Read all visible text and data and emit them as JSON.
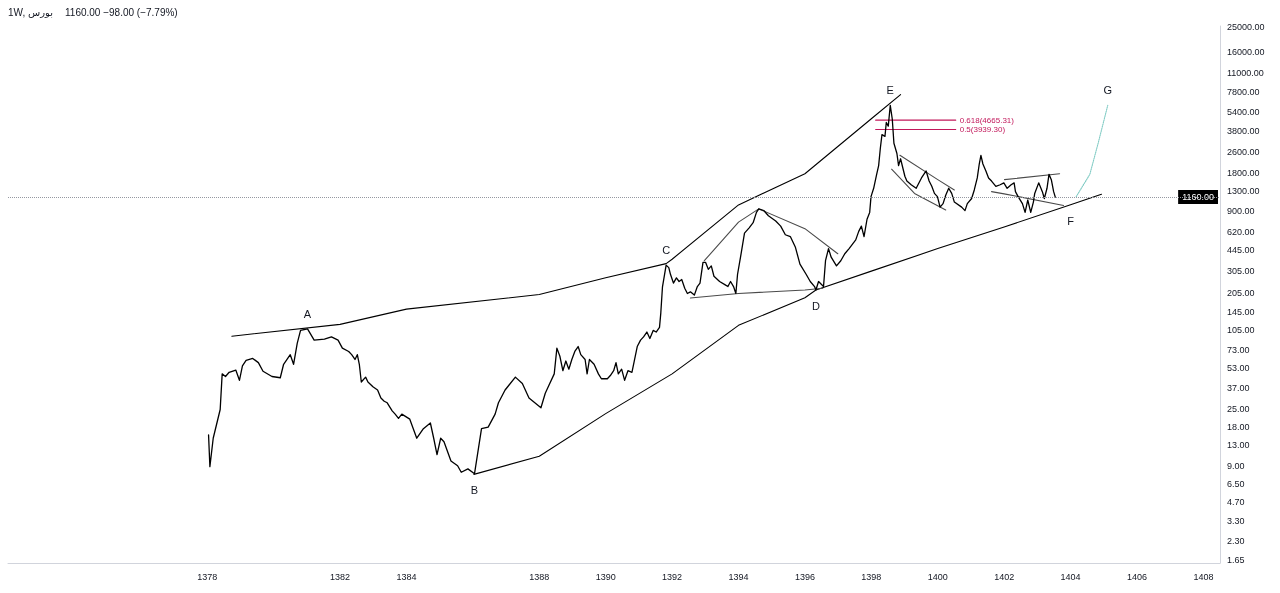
{
  "chart_data": {
    "type": "line",
    "title": "1W, بورس",
    "subtitle": "1160.00  −98.00 (−7.79%)",
    "log": "y",
    "marker": "none",
    "xlim": [
      1372,
      1408.5
    ],
    "xticks": [
      1378,
      1382,
      1384,
      1388,
      1390,
      1392,
      1394,
      1396,
      1398,
      1400,
      1402,
      1404,
      1406,
      1408
    ],
    "ylim": [
      1.55,
      25600
    ],
    "yticks": [
      1.65,
      {
        "value": 2.3,
        "label": "2.30"
      },
      {
        "value": 3.3,
        "label": "3.30"
      },
      {
        "value": 4.7,
        "label": "4.70"
      },
      {
        "value": 6.5,
        "label": "6.50"
      },
      {
        "value": 9,
        "label": "9.00"
      },
      {
        "value": 13,
        "label": "13.00"
      },
      {
        "value": 18,
        "label": "18.00"
      },
      {
        "value": 25,
        "label": "25.00"
      },
      {
        "value": 37,
        "label": "37.00"
      },
      {
        "value": 53,
        "label": "53.00"
      },
      {
        "value": 73,
        "label": "73.00"
      },
      {
        "value": 105,
        "label": "105.00"
      },
      {
        "value": 145,
        "label": "145.00"
      },
      {
        "value": 205,
        "label": "205.00"
      },
      {
        "value": 305,
        "label": "305.00"
      },
      {
        "value": 445,
        "label": "445.00"
      },
      {
        "value": 620,
        "label": "620.00"
      },
      {
        "value": 900,
        "label": "900.00"
      },
      {
        "value": 1300,
        "label": "1300.00"
      },
      {
        "value": 1800,
        "label": "1800.00"
      },
      {
        "value": 2600,
        "label": "2600.00"
      },
      {
        "value": 3800,
        "label": "3800.00"
      },
      {
        "value": 5400,
        "label": "5400.00"
      },
      {
        "value": 7800,
        "label": "7800.00"
      },
      {
        "value": 11000,
        "label": "11000.00"
      },
      {
        "value": 16000,
        "label": "16000.00"
      },
      {
        "value": 25000,
        "label": "25000.00"
      }
    ],
    "series": [
      {
        "color": "#000000",
        "x": [
          1378.04,
          1378.08,
          1378.18,
          1378.39,
          1378.45,
          1378.55,
          1378.66,
          1378.86,
          1378.97,
          1379.06,
          1379.17,
          1379.37,
          1379.54,
          1379.68,
          1379.95,
          1380.2,
          1380.3,
          1380.5,
          1380.6,
          1380.71,
          1380.81,
          1381.02,
          1381.22,
          1381.53,
          1381.74,
          1381.94,
          1382.07,
          1382.26,
          1382.35,
          1382.45,
          1382.52,
          1382.58,
          1382.64,
          1382.77,
          1382.84,
          1382.99,
          1383.13,
          1383.23,
          1383.33,
          1383.42,
          1383.57,
          1383.66,
          1383.76,
          1383.86,
          1384.1,
          1384.31,
          1384.51,
          1384.72,
          1384.82,
          1384.92,
          1385.03,
          1385.13,
          1385.34,
          1385.54,
          1385.65,
          1385.85,
          1386.05,
          1386.26,
          1386.46,
          1386.67,
          1386.77,
          1386.97,
          1387.28,
          1387.49,
          1387.69,
          1388.05,
          1388.18,
          1388.27,
          1388.45,
          1388.53,
          1388.62,
          1388.71,
          1388.8,
          1388.89,
          1388.98,
          1389.07,
          1389.17,
          1389.25,
          1389.38,
          1389.44,
          1389.51,
          1389.65,
          1389.78,
          1389.87,
          1390.05,
          1390.14,
          1390.24,
          1390.31,
          1390.38,
          1390.48,
          1390.57,
          1390.67,
          1390.79,
          1390.86,
          1390.95,
          1391.05,
          1391.14,
          1391.24,
          1391.33,
          1391.43,
          1391.52,
          1391.62,
          1391.66,
          1391.71,
          1391.82,
          1391.9,
          1391.95,
          1392.04,
          1392.13,
          1392.21,
          1392.29,
          1392.38,
          1392.46,
          1392.55,
          1392.67,
          1392.76,
          1392.84,
          1392.93,
          1393.01,
          1393.09,
          1393.18,
          1393.26,
          1393.43,
          1393.6,
          1393.68,
          1393.76,
          1393.85,
          1393.92,
          1393.97,
          1394.06,
          1394.18,
          1394.32,
          1394.44,
          1394.54,
          1394.61,
          1394.76,
          1394.9,
          1395.12,
          1395.27,
          1395.41,
          1395.56,
          1395.71,
          1395.85,
          1396.04,
          1396.16,
          1396.29,
          1396.33,
          1396.41,
          1396.56,
          1396.62,
          1396.71,
          1396.79,
          1396.95,
          1397.08,
          1397.2,
          1397.33,
          1397.45,
          1397.53,
          1397.62,
          1397.7,
          1397.78,
          1397.87,
          1397.95,
          1397.99,
          1398.07,
          1398.16,
          1398.22,
          1398.27,
          1398.32,
          1398.41,
          1398.45,
          1398.51,
          1398.57,
          1398.63,
          1398.68,
          1398.77,
          1398.82,
          1398.88,
          1399.01,
          1399.07,
          1399.2,
          1399.35,
          1399.51,
          1399.65,
          1399.74,
          1399.82,
          1399.9,
          1399.99,
          1400.07,
          1400.16,
          1400.24,
          1400.33,
          1400.42,
          1400.5,
          1400.72,
          1400.82,
          1400.89,
          1401.02,
          1401.1,
          1401.19,
          1401.25,
          1401.3,
          1401.36,
          1401.45,
          1401.53,
          1401.62,
          1401.75,
          1401.88,
          1401.99,
          1402.09,
          1402.21,
          1402.3,
          1402.34,
          1402.42,
          1402.55,
          1402.63,
          1402.71,
          1402.8,
          1402.88,
          1402.92,
          1403.04,
          1403.15,
          1403.21,
          1403.29,
          1403.35,
          1403.42,
          1403.49,
          1403.54
        ],
        "values": [
          15.7,
          8.85,
          14.8,
          24.9,
          47.4,
          45.2,
          48.8,
          50.8,
          42.2,
          54.8,
          60.5,
          62.7,
          58.1,
          49.7,
          45.2,
          44.2,
          56.4,
          67.1,
          56.4,
          82.4,
          104,
          107,
          87.3,
          88.9,
          92.5,
          87.3,
          75.5,
          71.1,
          67.1,
          61.5,
          67.1,
          56.4,
          40.9,
          44.7,
          40.9,
          37.5,
          35.4,
          30.6,
          28.9,
          28.1,
          24.3,
          22.9,
          21.2,
          22.9,
          20.9,
          14.8,
          17.6,
          19.5,
          14.8,
          11,
          14.8,
          13.9,
          9.8,
          9,
          8,
          8.5,
          7.8,
          17.6,
          18.1,
          22.9,
          28.1,
          35.4,
          44.7,
          39.8,
          30.6,
          25.7,
          33.4,
          37.5,
          47.4,
          75.5,
          65.2,
          50.2,
          59.8,
          51.6,
          61.5,
          71.1,
          77.7,
          67.1,
          61.5,
          47.4,
          61.5,
          56.4,
          47.4,
          43.4,
          43.4,
          46,
          50.2,
          58.1,
          47.4,
          51.6,
          42.2,
          50.2,
          48.8,
          59.8,
          77.7,
          87.3,
          92.5,
          101,
          89.9,
          104,
          101,
          110,
          143,
          229,
          339,
          324,
          287,
          245,
          269,
          252,
          261,
          223,
          203,
          209,
          197,
          230,
          245,
          356,
          356,
          314,
          334,
          277,
          252,
          237,
          230,
          252,
          230,
          203,
          286,
          391,
          605,
          665,
          730,
          879,
          937,
          910,
          828,
          753,
          686,
          587,
          568,
          471,
          345,
          286,
          252,
          230,
          216,
          252,
          230,
          367,
          457,
          391,
          334,
          367,
          416,
          457,
          502,
          535,
          624,
          686,
          568,
          777,
          879,
          1170,
          1360,
          1750,
          2050,
          2790,
          3590,
          3480,
          4470,
          4190,
          6100,
          4760,
          3070,
          2550,
          2050,
          2320,
          1690,
          1550,
          1450,
          1360,
          1640,
          1860,
          1550,
          1410,
          1240,
          1170,
          967,
          1030,
          1200,
          1360,
          1240,
          1060,
          967,
          908,
          1030,
          1130,
          1320,
          1640,
          2110,
          2470,
          2110,
          1860,
          1640,
          1550,
          1410,
          1450,
          1500,
          1360,
          1450,
          1500,
          1280,
          1170,
          1030,
          879,
          1100,
          879,
          1060,
          1240,
          1500,
          1280,
          1130,
          1360,
          1750,
          1590,
          1280,
          1160
        ]
      },
      {
        "color": "#000000",
        "x": [
          1378.74,
          1382,
          1384,
          1388,
          1390,
          1391.82,
          1392,
          1394,
          1396,
          1398,
          1398.88
        ],
        "values": [
          93.7,
          116,
          153,
          199,
          270,
          348,
          377,
          1007,
          1770,
          4780,
          7410
        ]
      },
      {
        "color": "#000000",
        "x": [
          1386.03,
          1388,
          1390,
          1392,
          1394,
          1396,
          1396.33,
          1398,
          1400,
          1402,
          1404,
          1404.93
        ],
        "values": [
          7.7,
          10.7,
          23.1,
          47.4,
          114,
          188,
          216,
          304,
          457,
          676,
          1010,
          1220
        ]
      },
      {
        "color": "#4a4a4a",
        "x": [
          1392.55,
          1394,
          1396,
          1396.54
        ],
        "values": [
          187,
          203,
          216,
          223
        ]
      },
      {
        "color": "#4a4a4a",
        "x": [
          1392.97,
          1394,
          1394.61,
          1396,
          1396.99
        ],
        "values": [
          367,
          738,
          937,
          655,
          416
        ]
      },
      {
        "color": "#4a4a4a",
        "x": [
          1398.86,
          1400,
          1400.5
        ],
        "values": [
          2470,
          1590,
          1320
        ]
      },
      {
        "color": "#4a4a4a",
        "x": [
          1398.61,
          1399.3,
          1400.24
        ],
        "values": [
          1920,
          1240,
          919
        ]
      },
      {
        "color": "#4a4a4a",
        "x": [
          1402.01,
          1403.67
        ],
        "values": [
          1590,
          1770
        ]
      },
      {
        "color": "#4a4a4a",
        "x": [
          1401.62,
          1402,
          1403.79
        ],
        "values": [
          1280,
          1230,
          997
        ]
      },
      {
        "name": "0.618(4665.31)",
        "color": "#c2185b",
        "x": [
          1398.13,
          1400.54
        ],
        "values": [
          4665.31,
          4665.31
        ]
      },
      {
        "name": "0.5(3939.30)",
        "color": "#c2185b",
        "x": [
          1398.13,
          1400.54
        ],
        "values": [
          3939.3,
          3939.3
        ]
      },
      {
        "color": "#80cbc4",
        "line_style": "dotted",
        "x": [
          1404.17,
          1404.58,
          1404.83,
          1405.12
        ],
        "values": [
          1170,
          1750,
          3070,
          6100
        ]
      }
    ],
    "ref_lines": [
      {
        "axis": "y",
        "value": 1160,
        "label": "1160.00",
        "color": "#9598a1",
        "line_style": "dotted"
      }
    ],
    "annotations": [
      {
        "text": "A",
        "x": 1381.02,
        "y": 107
      },
      {
        "text": "B",
        "x": 1386.05,
        "y": 7.8
      },
      {
        "text": "C",
        "x": 1391.82,
        "y": 339
      },
      {
        "text": "D",
        "x": 1396.33,
        "y": 216
      },
      {
        "text": "E",
        "x": 1398.57,
        "y": 6100
      },
      {
        "text": "F",
        "x": 1404,
        "y": 1010
      },
      {
        "text": "G",
        "x": 1405.12,
        "y": 6100
      }
    ]
  }
}
